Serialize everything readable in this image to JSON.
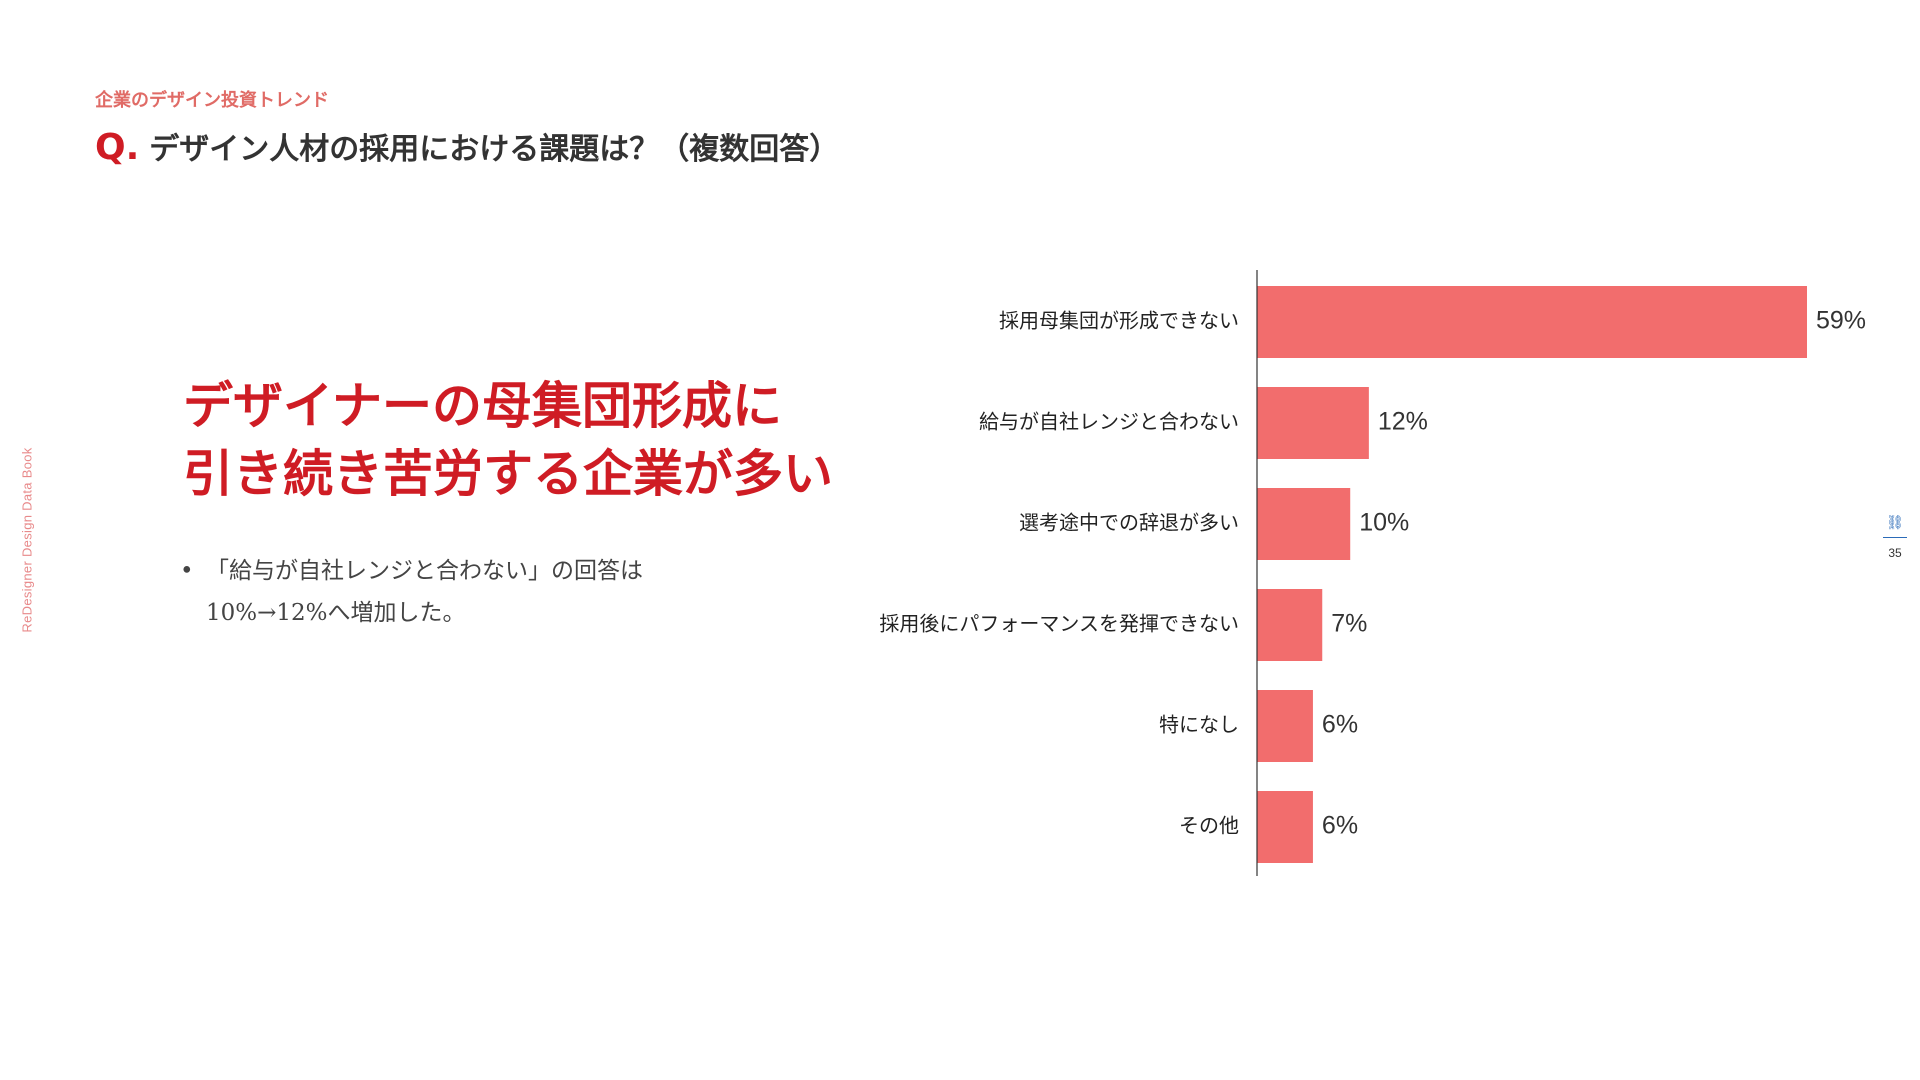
{
  "colors": {
    "accent": "#cf1c24",
    "section": "#e06b66",
    "bar": "#f26d6d",
    "side": "#e8898a"
  },
  "side_label": "ReDesigner Design Data Book",
  "section_label": "企業のデザイン投資トレンド",
  "question": {
    "mark": "Q.",
    "text": "デザイン人材の採用における課題は？（複数回答）"
  },
  "headline": {
    "line1": "デザイナーの母集団形成に",
    "line2": "引き続き苦労する企業が多い"
  },
  "bullet": {
    "text": "「給与が自社レンジと合わない」の回答は10%→12%へ増加した。"
  },
  "page": {
    "number": "35",
    "icon": "link-icon"
  },
  "chart_data": {
    "type": "bar",
    "orientation": "horizontal",
    "categories": [
      "採用母集団が形成できない",
      "給与が自社レンジと合わない",
      "選考途中での辞退が多い",
      "採用後にパフォーマンスを発揮できない",
      "特になし",
      "その他"
    ],
    "values": [
      59,
      12,
      10,
      7,
      6,
      6
    ],
    "labels": [
      "59%",
      "12%",
      "10%",
      "7%",
      "6%",
      "6%"
    ],
    "xlim": [
      0,
      60
    ],
    "grid": false,
    "legend": "none"
  }
}
